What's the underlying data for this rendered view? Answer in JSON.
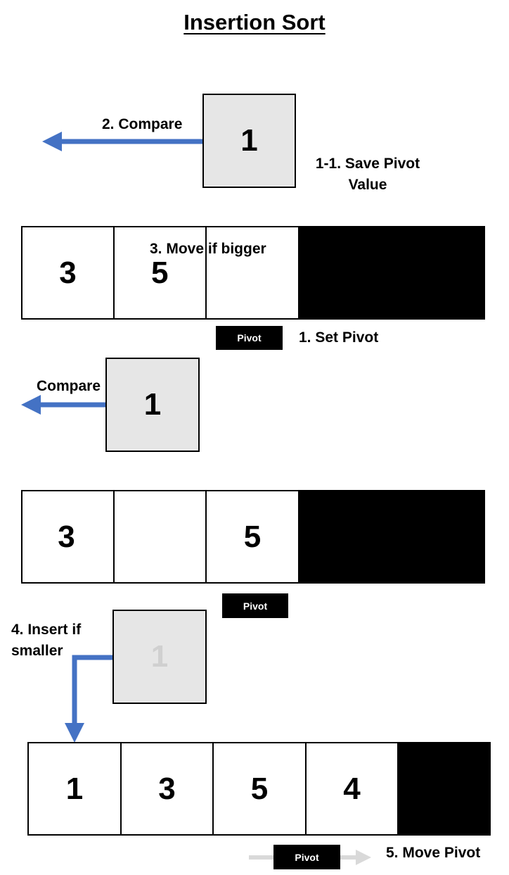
{
  "title": "Insertion Sort",
  "step1": {
    "saved_value": "1",
    "compare_label": "2. Compare",
    "save_pivot_label_line1": "1-1. Save Pivot",
    "save_pivot_label_line2": "Value",
    "array": [
      "3",
      "5",
      ""
    ],
    "move_label": "3. Move if bigger",
    "pivot_tag": "Pivot",
    "set_pivot_label": "1. Set Pivot"
  },
  "step2": {
    "saved_value": "1",
    "compare_label": "Compare",
    "array": [
      "3",
      "",
      "5"
    ],
    "pivot_tag": "Pivot"
  },
  "step3": {
    "saved_value": "1",
    "insert_label_line1": "4. Insert if",
    "insert_label_line2": "smaller",
    "array": [
      "1",
      "3",
      "5",
      "4"
    ],
    "pivot_tag": "Pivot",
    "move_pivot_label": "5. Move Pivot"
  },
  "colors": {
    "blue_arrow": "#4472c4",
    "gray_arrow": "#d9d9d9",
    "box_fill": "#e6e6e6"
  }
}
